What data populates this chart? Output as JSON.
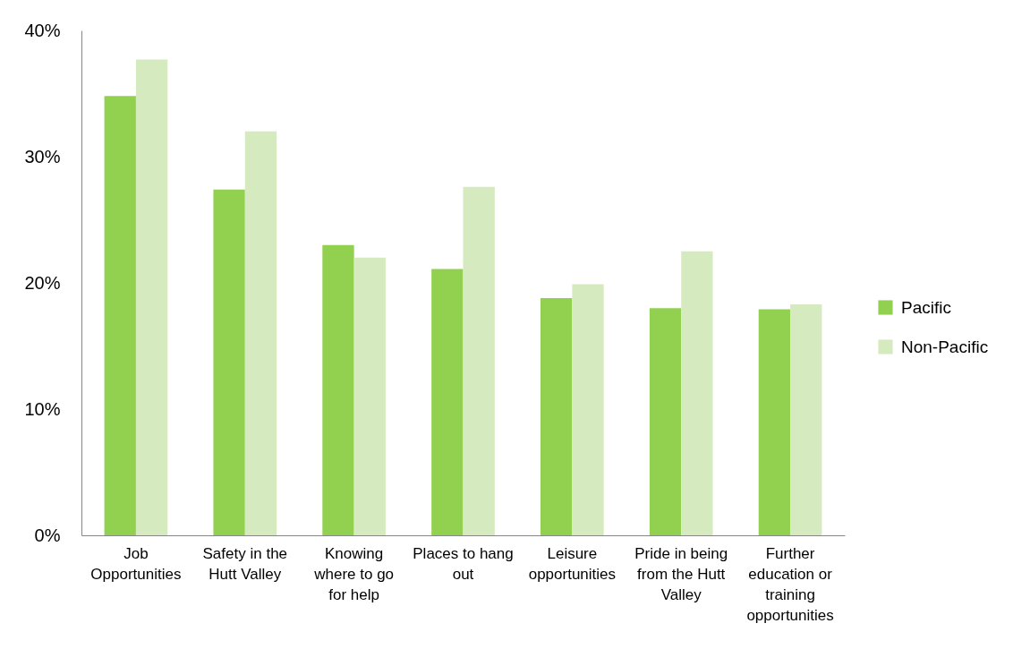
{
  "chart_data": {
    "type": "bar",
    "categories": [
      "Job Opportunities",
      "Safety in the Hutt Valley",
      "Knowing where to go for help",
      "Places to hang out",
      "Leisure opportunities",
      "Pride in being from the Hutt Valley",
      "Further education or training opportunities"
    ],
    "series": [
      {
        "name": "Pacific",
        "color": "#92d050",
        "values": [
          34.8,
          27.4,
          23.0,
          21.1,
          18.8,
          18.0,
          17.9
        ]
      },
      {
        "name": "Non-Pacific",
        "color": "#d5ebbf",
        "values": [
          37.7,
          32.0,
          22.0,
          27.6,
          19.9,
          22.5,
          18.3
        ]
      }
    ],
    "ylim": [
      0,
      40
    ],
    "yticks": [
      {
        "value": 0,
        "label": "0%"
      },
      {
        "value": 10,
        "label": "10%"
      },
      {
        "value": 20,
        "label": "20%"
      },
      {
        "value": 30,
        "label": "30%"
      },
      {
        "value": 40,
        "label": "40%"
      }
    ],
    "grid": false,
    "legend": "right"
  }
}
